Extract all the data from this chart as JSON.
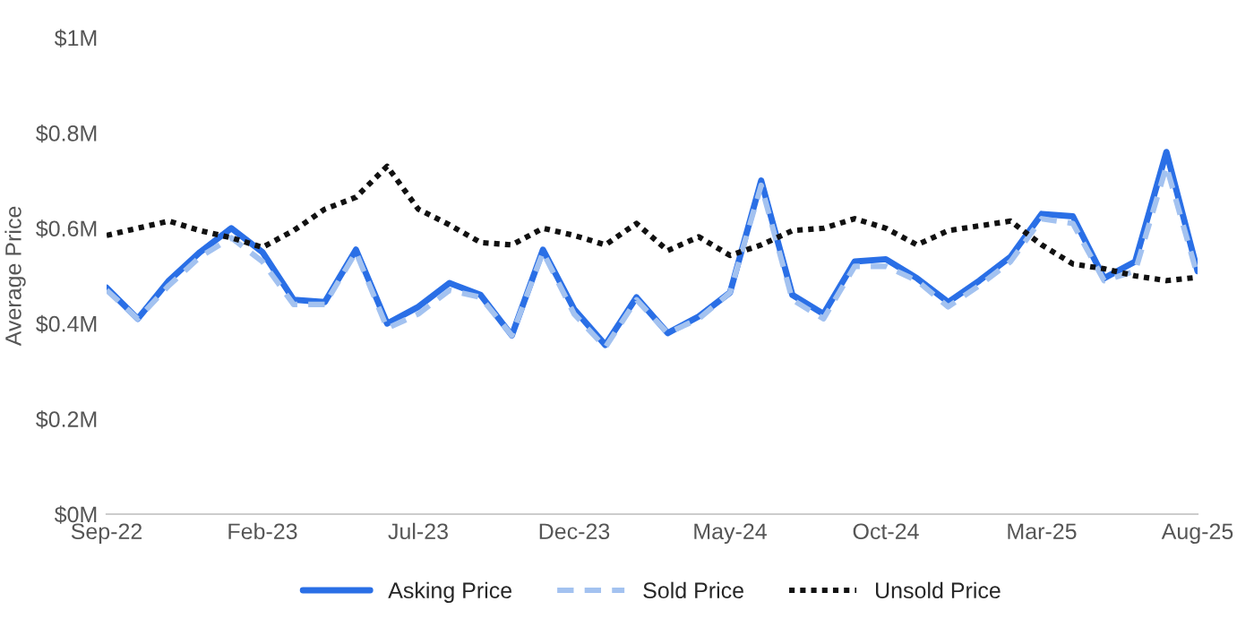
{
  "chart_data": {
    "type": "line",
    "ylabel": "Average Price",
    "categories": [
      "Sep-22",
      null,
      null,
      null,
      null,
      "Feb-23",
      null,
      null,
      null,
      null,
      "Jul-23",
      null,
      null,
      null,
      null,
      "Dec-23",
      null,
      null,
      null,
      null,
      "May-24",
      null,
      null,
      null,
      null,
      "Oct-24",
      null,
      null,
      null,
      null,
      "Mar-25",
      null,
      null,
      null,
      null,
      "Aug-25"
    ],
    "series": [
      {
        "name": "Asking Price",
        "color": "#2a6fe6",
        "line_style": "solid",
        "values": [
          0.475,
          0.41,
          0.49,
          0.55,
          0.6,
          0.55,
          0.45,
          0.445,
          0.555,
          0.4,
          0.435,
          0.485,
          0.46,
          0.375,
          0.555,
          0.43,
          0.355,
          0.455,
          0.38,
          0.415,
          0.465,
          0.7,
          0.46,
          0.42,
          0.53,
          0.535,
          0.495,
          0.445,
          0.49,
          0.54,
          0.63,
          0.625,
          0.495,
          0.53,
          0.76,
          0.51
        ]
      },
      {
        "name": "Sold Price",
        "color": "#a3c2f0",
        "line_style": "dashed",
        "values": [
          0.47,
          0.41,
          0.48,
          0.54,
          0.58,
          0.53,
          0.44,
          0.44,
          0.55,
          0.39,
          0.42,
          0.47,
          0.455,
          0.375,
          0.55,
          0.42,
          0.35,
          0.45,
          0.38,
          0.41,
          0.465,
          0.69,
          0.45,
          0.41,
          0.52,
          0.52,
          0.49,
          0.435,
          0.48,
          0.53,
          0.62,
          0.61,
          0.49,
          0.51,
          0.73,
          0.5
        ]
      },
      {
        "name": "Unsold Price",
        "color": "#111111",
        "line_style": "dotted",
        "values": [
          0.585,
          0.6,
          0.615,
          0.595,
          0.58,
          0.56,
          0.595,
          0.64,
          0.665,
          0.73,
          0.64,
          0.607,
          0.57,
          0.565,
          0.6,
          0.585,
          0.565,
          0.61,
          0.553,
          0.582,
          0.543,
          0.565,
          0.595,
          0.6,
          0.62,
          0.6,
          0.565,
          0.595,
          0.605,
          0.615,
          0.565,
          0.525,
          0.515,
          0.5,
          0.49,
          0.497
        ]
      }
    ],
    "ylim": [
      0,
      1
    ],
    "yticks": [
      {
        "value": 0,
        "label": "$0M"
      },
      {
        "value": 0.2,
        "label": "$0.2M"
      },
      {
        "value": 0.4,
        "label": "$0.4M"
      },
      {
        "value": 0.6,
        "label": "$0.6M"
      },
      {
        "value": 0.8,
        "label": "$0.8M"
      },
      {
        "value": 1,
        "label": "$1M"
      }
    ],
    "grid": false,
    "legend": "bottom",
    "marker": "none"
  }
}
